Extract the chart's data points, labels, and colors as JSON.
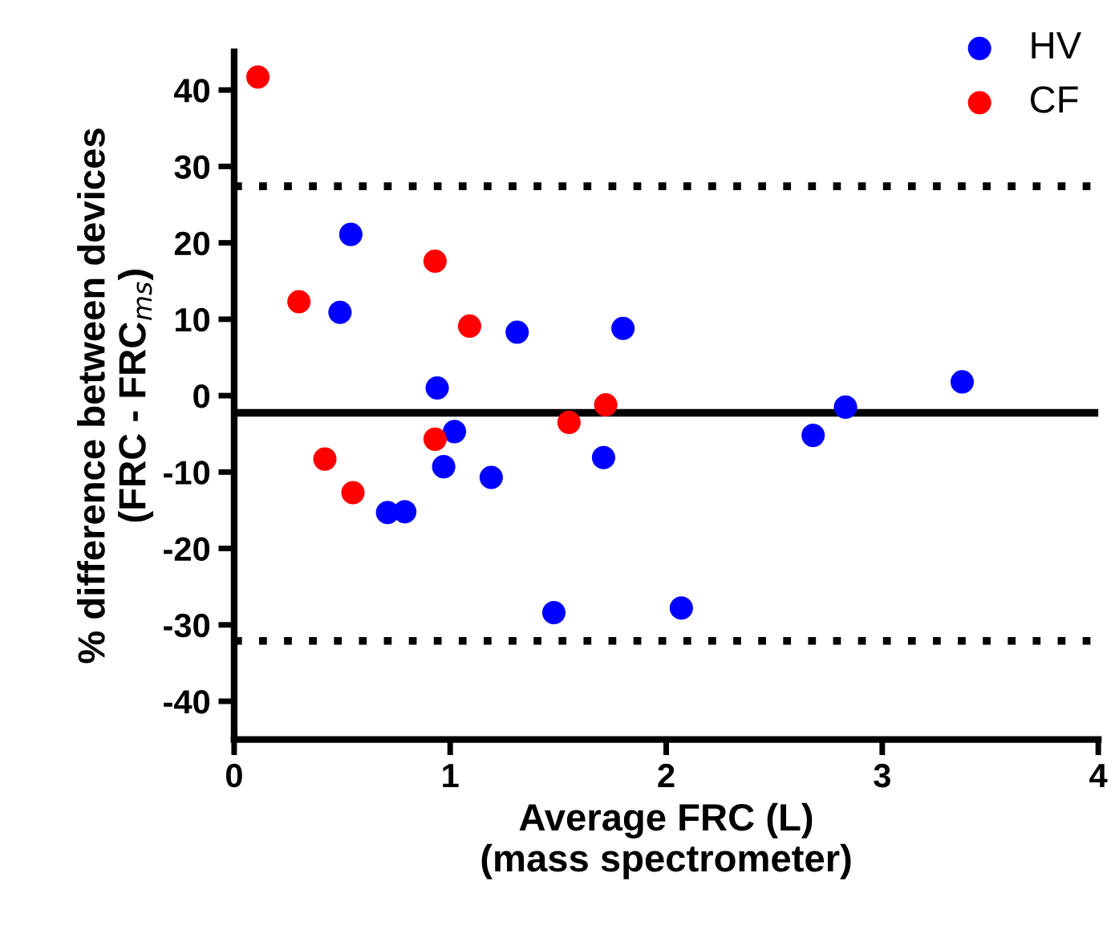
{
  "chart_data": {
    "type": "scatter",
    "xlabel": "Average FRC (L)\n(mass spectrometer)",
    "ylabel": "% difference between devices\n(FRC - FRC$_{ms}$)",
    "series": [
      {
        "name": "HV",
        "color": "#0000ff",
        "x": [
          0.54,
          0.49,
          1.31,
          1.8,
          0.94,
          1.02,
          1.71,
          0.97,
          1.19,
          0.71,
          0.79,
          1.48,
          2.07,
          2.68,
          2.83,
          3.37
        ],
        "values": [
          21.1,
          10.9,
          8.3,
          8.8,
          1.0,
          -4.7,
          -8.1,
          -9.3,
          -10.7,
          -15.3,
          -15.2,
          -28.4,
          -27.8,
          -5.2,
          -1.5,
          1.8
        ]
      },
      {
        "name": "CF",
        "color": "#ff0000",
        "x": [
          0.11,
          0.93,
          0.3,
          1.09,
          1.72,
          1.55,
          0.93,
          0.42,
          0.55
        ],
        "values": [
          41.7,
          17.6,
          12.3,
          9.1,
          -1.2,
          -3.5,
          -5.7,
          -8.3,
          -12.7
        ]
      }
    ],
    "ref_lines": [
      {
        "axis": "y",
        "value": -2.25,
        "color": "#000000",
        "line_style": "solid"
      },
      {
        "axis": "y",
        "value": 27.4,
        "color": "#000000",
        "line_style": "dotted"
      },
      {
        "axis": "y",
        "value": -32.1,
        "color": "#000000",
        "line_style": "dotted"
      }
    ],
    "xlim": [
      0,
      4
    ],
    "xticks": [
      0,
      1,
      2,
      3,
      4
    ],
    "ylim": [
      -45,
      45
    ],
    "yticks": [
      -40,
      -30,
      -20,
      -10,
      0,
      10,
      20,
      30,
      40
    ],
    "marker": "circle",
    "grid": false,
    "legend": "top right"
  }
}
